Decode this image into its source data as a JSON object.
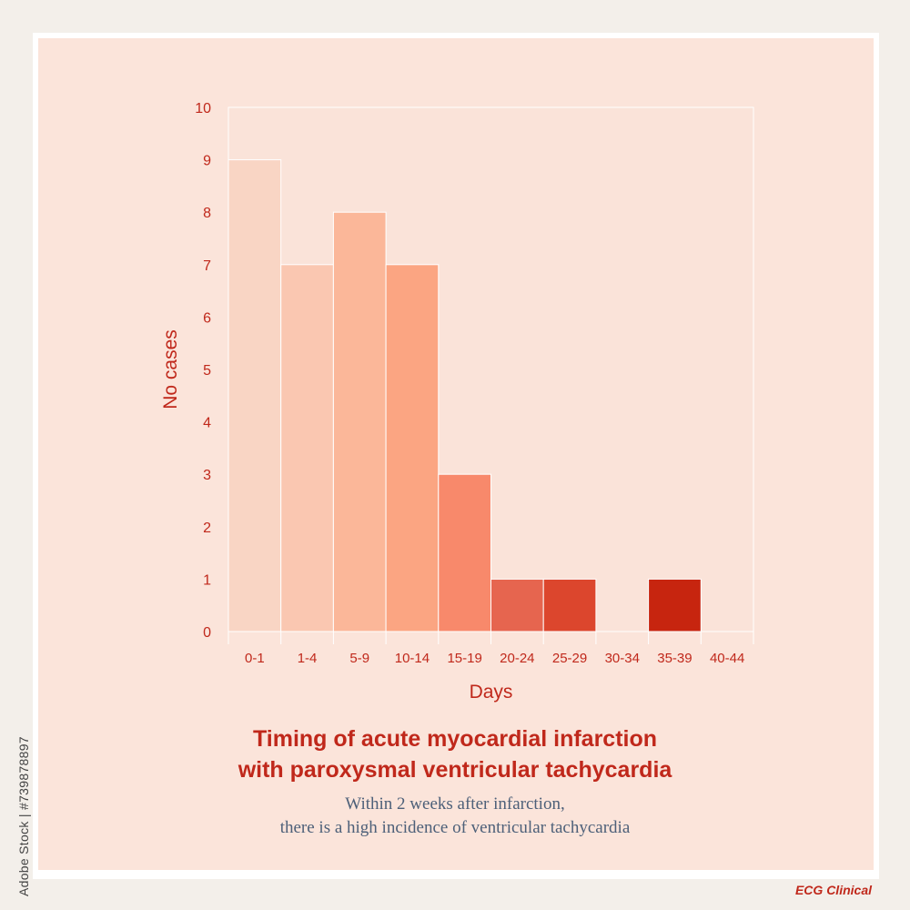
{
  "chart_data": {
    "type": "bar",
    "categories": [
      "0-1",
      "1-4",
      "5-9",
      "10-14",
      "15-19",
      "20-24",
      "25-29",
      "30-34",
      "35-39",
      "40-44"
    ],
    "values": [
      9,
      7,
      8,
      7,
      3,
      1,
      1,
      0,
      1,
      0
    ],
    "bar_colors": [
      "#f9d5c4",
      "#fac7b1",
      "#fbb799",
      "#fba582",
      "#f8896b",
      "#e6654f",
      "#dc462d",
      "#f0a07f",
      "#c7250f",
      "#f0a07f"
    ],
    "xlabel": "Days",
    "ylabel": "No cases",
    "ylim": [
      0,
      10
    ],
    "yticks": [
      0,
      1,
      2,
      3,
      4,
      5,
      6,
      7,
      8,
      9,
      10
    ],
    "grid": false,
    "title_lines": [
      "Timing of acute myocardial infarction",
      "with paroxysmal ventricular tachycardia"
    ],
    "subtitle_lines": [
      "Within 2 weeks after infarction,",
      "there is a high incidence of ventricular tachycardia"
    ]
  },
  "colors": {
    "accent": "#c0281b",
    "subtitle": "#4d6079",
    "panel": "#fbe4da",
    "plot_bg": "#fae3d9"
  },
  "side_id": "Adobe Stock | #739878897",
  "brand": "ECG Clinical"
}
